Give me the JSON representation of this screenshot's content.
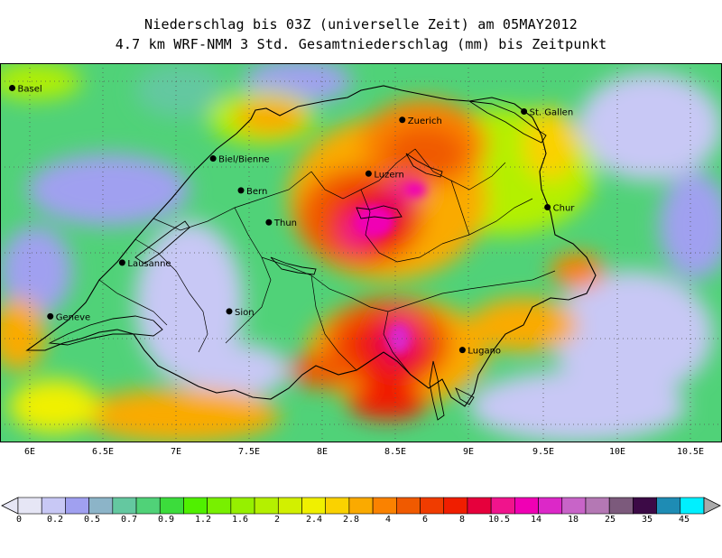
{
  "title_line1": "Niederschlag bis 03Z (universelle Zeit) am 05MAY2012",
  "title_line2": "4.7 km WRF-NMM 3 Std. Gesamtniederschlag (mm) bis Zeitpunkt",
  "x_ticks": [
    "6E",
    "6.5E",
    "7E",
    "7.5E",
    "8E",
    "8.5E",
    "9E",
    "9.5E",
    "10E",
    "10.5E"
  ],
  "cities": [
    {
      "name": "Basel",
      "lon": 5.88,
      "lat": 47.56
    },
    {
      "name": "Zuerich",
      "lon": 8.54,
      "lat": 47.37
    },
    {
      "name": "St. Gallen",
      "lon": 9.37,
      "lat": 47.42
    },
    {
      "name": "Biel/Bienne",
      "lon": 7.25,
      "lat": 47.14
    },
    {
      "name": "Luzern",
      "lon": 8.31,
      "lat": 47.05
    },
    {
      "name": "Bern",
      "lon": 7.44,
      "lat": 46.95
    },
    {
      "name": "Chur",
      "lon": 9.53,
      "lat": 46.85
    },
    {
      "name": "Thun",
      "lon": 7.63,
      "lat": 46.76
    },
    {
      "name": "Lausanne",
      "lon": 6.63,
      "lat": 46.52
    },
    {
      "name": "Geneve",
      "lon": 6.14,
      "lat": 46.2
    },
    {
      "name": "Sion",
      "lon": 7.36,
      "lat": 46.23
    },
    {
      "name": "Lugano",
      "lon": 8.95,
      "lat": 46.0
    }
  ],
  "legend": {
    "labels": [
      "0",
      "0.2",
      "0.5",
      "0.7",
      "0.9",
      "1.2",
      "1.6",
      "2",
      "2.4",
      "2.8",
      "4",
      "6",
      "8",
      "10.5",
      "14",
      "18",
      "25",
      "35",
      "45"
    ],
    "colors": [
      "#e6e6f5",
      "#c8c8f5",
      "#a0a0f0",
      "#8cb4c8",
      "#64c8a0",
      "#50d278",
      "#3cdc3c",
      "#50f000",
      "#78f000",
      "#96f000",
      "#b4f000",
      "#d2f000",
      "#f0f000",
      "#fad200",
      "#faaa00",
      "#fa8200",
      "#f05a00",
      "#f03c00",
      "#f01e00",
      "#e6003c",
      "#f0148c",
      "#f000b4",
      "#dc28c8",
      "#c864c8",
      "#b478b4",
      "#7c5a7c",
      "#3c0a46",
      "#1e8cb4",
      "#00f0ff"
    ]
  },
  "chart_data": {
    "type": "heatmap",
    "title": "Niederschlag bis 03Z (universelle Zeit) am 05MAY2012",
    "subtitle": "4.7 km WRF-NMM 3 Std. Gesamtniederschlag (mm) bis Zeitpunkt",
    "xlabel": "",
    "ylabel": "",
    "x_ticks": [
      "6E",
      "6.5E",
      "7E",
      "7.5E",
      "8E",
      "8.5E",
      "9E",
      "9.5E",
      "10E",
      "10.5E"
    ],
    "xlim": [
      5.8,
      10.8
    ],
    "ylim": [
      45.7,
      47.85
    ],
    "hotspots": [
      {
        "lon": 8.4,
        "lat": 47.05,
        "max_mm": 18
      },
      {
        "lon": 8.55,
        "lat": 47.35,
        "max_mm": 10.5
      },
      {
        "lon": 8.5,
        "lat": 46.35,
        "max_mm": 18
      },
      {
        "lon": 8.3,
        "lat": 46.55,
        "max_mm": 10.5
      }
    ]
  }
}
